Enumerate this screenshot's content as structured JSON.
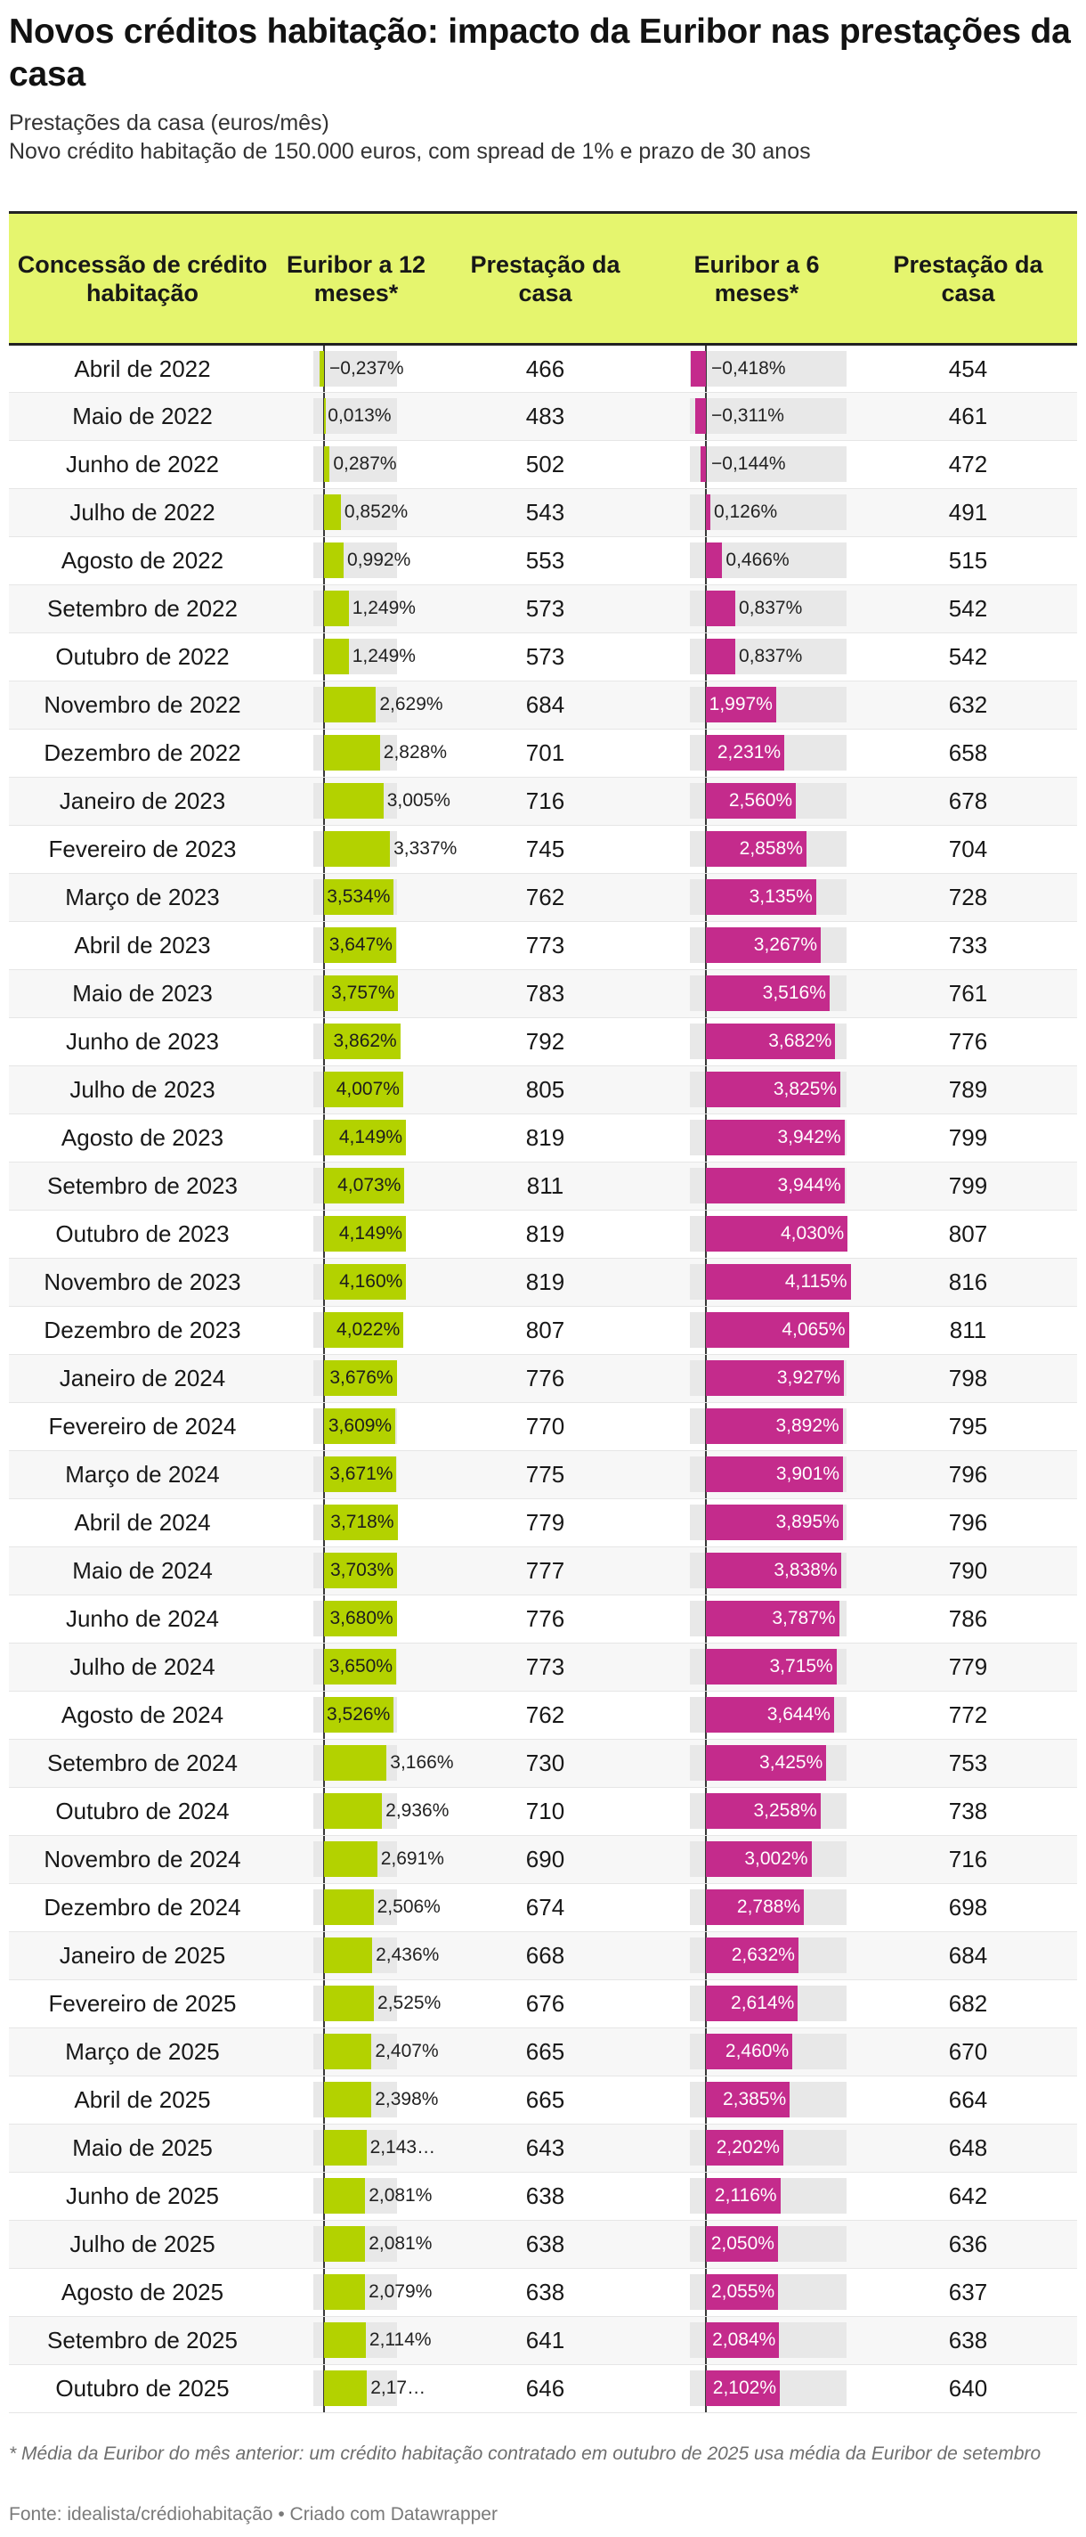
{
  "title": "Novos créditos habitação: impacto da Euribor nas prestações da casa",
  "subtitle_1": "Prestações da casa (euros/mês)",
  "subtitle_2": "Novo crédito habitação de 150.000 euros, com spread de 1% e prazo de 30 anos",
  "footnote": "* Média da Euribor do mês anterior: um crédito habitação contratado em outubro de 2025 usa média da Euribor de setembro",
  "source": "Fonte: idealista/crédiohabitação • Criado com Datawrapper",
  "colors": {
    "green": "#b3d200",
    "magenta": "#c42b8c",
    "header_bg": "#e5f56e"
  },
  "chart_data": {
    "type": "table",
    "title": "Novos créditos habitação: impacto da Euribor nas prestações da casa",
    "columns": [
      "Concessão de crédito habitação",
      "Euribor a 12 meses*",
      "Prestação da casa",
      "Euribor a 6 meses*",
      "Prestação da casa"
    ],
    "euribor_range": [
      -0.5,
      4.2
    ],
    "rows": [
      {
        "month": "Abril de 2022",
        "e12": -0.237,
        "e12_label": "−0,237%",
        "p12": 466,
        "e6": -0.418,
        "e6_label": "−0,418%",
        "p6": 454
      },
      {
        "month": "Maio de 2022",
        "e12": 0.013,
        "e12_label": "0,013%",
        "p12": 483,
        "e6": -0.311,
        "e6_label": "−0,311%",
        "p6": 461
      },
      {
        "month": "Junho de 2022",
        "e12": 0.287,
        "e12_label": "0,287%",
        "p12": 502,
        "e6": -0.144,
        "e6_label": "−0,144%",
        "p6": 472
      },
      {
        "month": "Julho de 2022",
        "e12": 0.852,
        "e12_label": "0,852%",
        "p12": 543,
        "e6": 0.126,
        "e6_label": "0,126%",
        "p6": 491
      },
      {
        "month": "Agosto de 2022",
        "e12": 0.992,
        "e12_label": "0,992%",
        "p12": 553,
        "e6": 0.466,
        "e6_label": "0,466%",
        "p6": 515
      },
      {
        "month": "Setembro de 2022",
        "e12": 1.249,
        "e12_label": "1,249%",
        "p12": 573,
        "e6": 0.837,
        "e6_label": "0,837%",
        "p6": 542
      },
      {
        "month": "Outubro de 2022",
        "e12": 1.249,
        "e12_label": "1,249%",
        "p12": 573,
        "e6": 0.837,
        "e6_label": "0,837%",
        "p6": 542
      },
      {
        "month": "Novembro de 2022",
        "e12": 2.629,
        "e12_label": "2,629%",
        "p12": 684,
        "e6": 1.997,
        "e6_label": "1,997%",
        "p6": 632
      },
      {
        "month": "Dezembro de 2022",
        "e12": 2.828,
        "e12_label": "2,828%",
        "p12": 701,
        "e6": 2.231,
        "e6_label": "2,231%",
        "p6": 658
      },
      {
        "month": "Janeiro de 2023",
        "e12": 3.005,
        "e12_label": "3,005%",
        "p12": 716,
        "e6": 2.56,
        "e6_label": "2,560%",
        "p6": 678
      },
      {
        "month": "Fevereiro de 2023",
        "e12": 3.337,
        "e12_label": "3,337%",
        "p12": 745,
        "e6": 2.858,
        "e6_label": "2,858%",
        "p6": 704
      },
      {
        "month": "Março de 2023",
        "e12": 3.534,
        "e12_label": "3,534%",
        "p12": 762,
        "e6": 3.135,
        "e6_label": "3,135%",
        "p6": 728
      },
      {
        "month": "Abril de 2023",
        "e12": 3.647,
        "e12_label": "3,647%",
        "p12": 773,
        "e6": 3.267,
        "e6_label": "3,267%",
        "p6": 733
      },
      {
        "month": "Maio de 2023",
        "e12": 3.757,
        "e12_label": "3,757%",
        "p12": 783,
        "e6": 3.516,
        "e6_label": "3,516%",
        "p6": 761
      },
      {
        "month": "Junho de 2023",
        "e12": 3.862,
        "e12_label": "3,862%",
        "p12": 792,
        "e6": 3.682,
        "e6_label": "3,682%",
        "p6": 776
      },
      {
        "month": "Julho de 2023",
        "e12": 4.007,
        "e12_label": "4,007%",
        "p12": 805,
        "e6": 3.825,
        "e6_label": "3,825%",
        "p6": 789
      },
      {
        "month": "Agosto de 2023",
        "e12": 4.149,
        "e12_label": "4,149%",
        "p12": 819,
        "e6": 3.942,
        "e6_label": "3,942%",
        "p6": 799
      },
      {
        "month": "Setembro de 2023",
        "e12": 4.073,
        "e12_label": "4,073%",
        "p12": 811,
        "e6": 3.944,
        "e6_label": "3,944%",
        "p6": 799
      },
      {
        "month": "Outubro de 2023",
        "e12": 4.149,
        "e12_label": "4,149%",
        "p12": 819,
        "e6": 4.03,
        "e6_label": "4,030%",
        "p6": 807
      },
      {
        "month": "Novembro de 2023",
        "e12": 4.16,
        "e12_label": "4,160%",
        "p12": 819,
        "e6": 4.115,
        "e6_label": "4,115%",
        "p6": 816
      },
      {
        "month": "Dezembro de 2023",
        "e12": 4.022,
        "e12_label": "4,022%",
        "p12": 807,
        "e6": 4.065,
        "e6_label": "4,065%",
        "p6": 811
      },
      {
        "month": "Janeiro de 2024",
        "e12": 3.676,
        "e12_label": "3,676%",
        "p12": 776,
        "e6": 3.927,
        "e6_label": "3,927%",
        "p6": 798
      },
      {
        "month": "Fevereiro de 2024",
        "e12": 3.609,
        "e12_label": "3,609%",
        "p12": 770,
        "e6": 3.892,
        "e6_label": "3,892%",
        "p6": 795
      },
      {
        "month": "Março de 2024",
        "e12": 3.671,
        "e12_label": "3,671%",
        "p12": 775,
        "e6": 3.901,
        "e6_label": "3,901%",
        "p6": 796
      },
      {
        "month": "Abril de 2024",
        "e12": 3.718,
        "e12_label": "3,718%",
        "p12": 779,
        "e6": 3.895,
        "e6_label": "3,895%",
        "p6": 796
      },
      {
        "month": "Maio de 2024",
        "e12": 3.703,
        "e12_label": "3,703%",
        "p12": 777,
        "e6": 3.838,
        "e6_label": "3,838%",
        "p6": 790
      },
      {
        "month": "Junho de 2024",
        "e12": 3.68,
        "e12_label": "3,680%",
        "p12": 776,
        "e6": 3.787,
        "e6_label": "3,787%",
        "p6": 786
      },
      {
        "month": "Julho de 2024",
        "e12": 3.65,
        "e12_label": "3,650%",
        "p12": 773,
        "e6": 3.715,
        "e6_label": "3,715%",
        "p6": 779
      },
      {
        "month": "Agosto de 2024",
        "e12": 3.526,
        "e12_label": "3,526%",
        "p12": 762,
        "e6": 3.644,
        "e6_label": "3,644%",
        "p6": 772
      },
      {
        "month": "Setembro de 2024",
        "e12": 3.166,
        "e12_label": "3,166%",
        "p12": 730,
        "e6": 3.425,
        "e6_label": "3,425%",
        "p6": 753
      },
      {
        "month": "Outubro de 2024",
        "e12": 2.936,
        "e12_label": "2,936%",
        "p12": 710,
        "e6": 3.258,
        "e6_label": "3,258%",
        "p6": 738
      },
      {
        "month": "Novembro de 2024",
        "e12": 2.691,
        "e12_label": "2,691%",
        "p12": 690,
        "e6": 3.002,
        "e6_label": "3,002%",
        "p6": 716
      },
      {
        "month": "Dezembro de 2024",
        "e12": 2.506,
        "e12_label": "2,506%",
        "p12": 674,
        "e6": 2.788,
        "e6_label": "2,788%",
        "p6": 698
      },
      {
        "month": "Janeiro de 2025",
        "e12": 2.436,
        "e12_label": "2,436%",
        "p12": 668,
        "e6": 2.632,
        "e6_label": "2,632%",
        "p6": 684
      },
      {
        "month": "Fevereiro de 2025",
        "e12": 2.525,
        "e12_label": "2,525%",
        "p12": 676,
        "e6": 2.614,
        "e6_label": "2,614%",
        "p6": 682
      },
      {
        "month": "Março de 2025",
        "e12": 2.407,
        "e12_label": "2,407%",
        "p12": 665,
        "e6": 2.46,
        "e6_label": "2,460%",
        "p6": 670
      },
      {
        "month": "Abril de 2025",
        "e12": 2.398,
        "e12_label": "2,398%",
        "p12": 665,
        "e6": 2.385,
        "e6_label": "2,385%",
        "p6": 664
      },
      {
        "month": "Maio de 2025",
        "e12": 2.143,
        "e12_label": "2,143…",
        "p12": 643,
        "e6": 2.202,
        "e6_label": "2,202%",
        "p6": 648
      },
      {
        "month": "Junho de 2025",
        "e12": 2.081,
        "e12_label": "2,081%",
        "p12": 638,
        "e6": 2.116,
        "e6_label": "2,116%",
        "p6": 642
      },
      {
        "month": "Julho de 2025",
        "e12": 2.081,
        "e12_label": "2,081%",
        "p12": 638,
        "e6": 2.05,
        "e6_label": "2,050%",
        "p6": 636
      },
      {
        "month": "Agosto de 2025",
        "e12": 2.079,
        "e12_label": "2,079%",
        "p12": 638,
        "e6": 2.055,
        "e6_label": "2,055%",
        "p6": 637
      },
      {
        "month": "Setembro de 2025",
        "e12": 2.114,
        "e12_label": "2,114%",
        "p12": 641,
        "e6": 2.084,
        "e6_label": "2,084%",
        "p6": 638
      },
      {
        "month": "Outubro de 2025",
        "e12": 2.172,
        "e12_label": "2,17…",
        "p12": 646,
        "e6": 2.102,
        "e6_label": "2,102%",
        "p6": 640
      }
    ]
  }
}
